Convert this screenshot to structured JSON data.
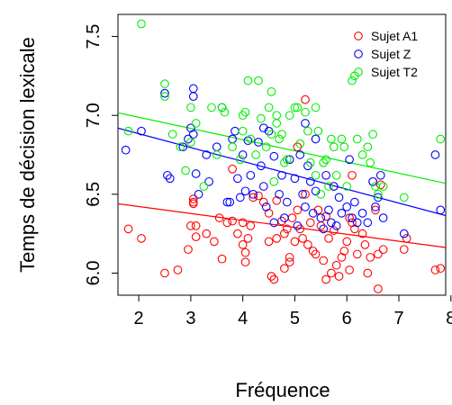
{
  "chart_data": {
    "type": "scatter",
    "xlabel": "Fréquence",
    "ylabel": "Temps de décision lexicale",
    "xlim": [
      1.6,
      7.9
    ],
    "ylim": [
      5.86,
      7.64
    ],
    "x_ticks": [
      2,
      3,
      4,
      5,
      6,
      7,
      8
    ],
    "y_ticks": [
      6.0,
      6.5,
      7.0,
      7.5
    ],
    "legend_position": "top-right",
    "series": [
      {
        "name": "Sujet A1",
        "color": "#ff0000",
        "fit": {
          "intercept": 6.51,
          "slope": -0.044
        },
        "points": [
          [
            1.8,
            6.28
          ],
          [
            2.05,
            6.22
          ],
          [
            2.5,
            6.0
          ],
          [
            2.75,
            6.02
          ],
          [
            2.95,
            6.15
          ],
          [
            3.0,
            6.3
          ],
          [
            3.05,
            6.44
          ],
          [
            3.05,
            6.45
          ],
          [
            3.05,
            6.47
          ],
          [
            3.1,
            6.3
          ],
          [
            3.1,
            6.23
          ],
          [
            3.3,
            6.25
          ],
          [
            3.45,
            6.2
          ],
          [
            3.55,
            6.35
          ],
          [
            3.6,
            6.09
          ],
          [
            3.7,
            6.32
          ],
          [
            3.8,
            6.33
          ],
          [
            3.9,
            6.25
          ],
          [
            4.0,
            6.18
          ],
          [
            4.0,
            6.32
          ],
          [
            4.05,
            6.13
          ],
          [
            4.05,
            6.07
          ],
          [
            4.1,
            6.22
          ],
          [
            4.15,
            6.3
          ],
          [
            4.2,
            6.48
          ],
          [
            4.3,
            6.49
          ],
          [
            4.4,
            6.45
          ],
          [
            4.5,
            6.38
          ],
          [
            4.5,
            6.2
          ],
          [
            4.55,
            5.98
          ],
          [
            4.6,
            5.96
          ],
          [
            4.65,
            6.46
          ],
          [
            4.65,
            6.22
          ],
          [
            4.75,
            6.33
          ],
          [
            4.8,
            6.25
          ],
          [
            4.8,
            6.03
          ],
          [
            4.85,
            6.28
          ],
          [
            4.9,
            6.1
          ],
          [
            4.9,
            6.07
          ],
          [
            4.95,
            6.35
          ],
          [
            5.0,
            6.2
          ],
          [
            5.05,
            6.4
          ],
          [
            5.1,
            6.28
          ],
          [
            5.15,
            6.22
          ],
          [
            5.2,
            6.5
          ],
          [
            5.25,
            6.18
          ],
          [
            5.3,
            6.32
          ],
          [
            5.35,
            6.14
          ],
          [
            5.4,
            6.12
          ],
          [
            5.45,
            6.4
          ],
          [
            5.5,
            6.3
          ],
          [
            5.55,
            6.08
          ],
          [
            5.6,
            5.96
          ],
          [
            5.6,
            6.36
          ],
          [
            5.65,
            6.22
          ],
          [
            5.7,
            6.0
          ],
          [
            5.75,
            6.27
          ],
          [
            5.8,
            6.05
          ],
          [
            5.85,
            5.98
          ],
          [
            5.9,
            6.1
          ],
          [
            5.95,
            6.14
          ],
          [
            6.0,
            6.2
          ],
          [
            6.05,
            6.35
          ],
          [
            6.05,
            6.02
          ],
          [
            6.1,
            6.32
          ],
          [
            6.15,
            6.28
          ],
          [
            6.2,
            6.12
          ],
          [
            6.3,
            6.25
          ],
          [
            6.35,
            6.18
          ],
          [
            6.4,
            6.0
          ],
          [
            6.45,
            6.1
          ],
          [
            6.55,
            6.4
          ],
          [
            6.6,
            6.12
          ],
          [
            6.6,
            5.9
          ],
          [
            6.65,
            6.56
          ],
          [
            6.7,
            6.15
          ],
          [
            7.1,
            6.15
          ],
          [
            7.15,
            6.22
          ],
          [
            7.7,
            6.02
          ],
          [
            7.8,
            6.03
          ],
          [
            5.2,
            7.1
          ],
          [
            5.05,
            6.8
          ],
          [
            6.5,
            6.58
          ],
          [
            6.1,
            6.62
          ],
          [
            5.75,
            6.55
          ],
          [
            3.8,
            6.66
          ]
        ]
      },
      {
        "name": "Sujet Z",
        "color": "#0000ff",
        "fit": {
          "intercept": 7.06,
          "slope": -0.088
        },
        "points": [
          [
            1.75,
            6.78
          ],
          [
            2.05,
            6.9
          ],
          [
            2.5,
            7.14
          ],
          [
            2.55,
            6.62
          ],
          [
            2.6,
            6.6
          ],
          [
            2.85,
            6.8
          ],
          [
            2.95,
            6.85
          ],
          [
            3.0,
            6.92
          ],
          [
            3.05,
            7.17
          ],
          [
            3.05,
            7.12
          ],
          [
            3.05,
            6.88
          ],
          [
            3.1,
            6.63
          ],
          [
            3.15,
            6.5
          ],
          [
            3.3,
            6.75
          ],
          [
            3.35,
            6.58
          ],
          [
            3.5,
            6.8
          ],
          [
            3.6,
            7.05
          ],
          [
            3.7,
            6.45
          ],
          [
            3.75,
            6.45
          ],
          [
            3.8,
            6.85
          ],
          [
            3.85,
            6.9
          ],
          [
            3.9,
            6.6
          ],
          [
            3.95,
            6.48
          ],
          [
            4.0,
            6.75
          ],
          [
            4.05,
            6.52
          ],
          [
            4.1,
            6.84
          ],
          [
            4.15,
            6.62
          ],
          [
            4.2,
            6.5
          ],
          [
            4.3,
            6.83
          ],
          [
            4.35,
            6.68
          ],
          [
            4.4,
            6.55
          ],
          [
            4.45,
            6.42
          ],
          [
            4.5,
            6.9
          ],
          [
            4.6,
            6.32
          ],
          [
            4.6,
            6.74
          ],
          [
            4.7,
            6.5
          ],
          [
            4.75,
            6.62
          ],
          [
            4.8,
            6.35
          ],
          [
            4.85,
            6.45
          ],
          [
            4.9,
            6.72
          ],
          [
            5.0,
            6.6
          ],
          [
            5.05,
            6.3
          ],
          [
            5.1,
            6.75
          ],
          [
            5.15,
            6.5
          ],
          [
            5.2,
            6.42
          ],
          [
            5.25,
            6.68
          ],
          [
            5.3,
            6.58
          ],
          [
            5.35,
            6.38
          ],
          [
            5.4,
            6.52
          ],
          [
            5.5,
            6.35
          ],
          [
            5.55,
            6.28
          ],
          [
            5.6,
            6.62
          ],
          [
            5.65,
            6.4
          ],
          [
            5.7,
            6.32
          ],
          [
            5.75,
            6.55
          ],
          [
            5.8,
            6.3
          ],
          [
            5.85,
            6.48
          ],
          [
            5.9,
            6.38
          ],
          [
            6.0,
            6.42
          ],
          [
            6.05,
            6.72
          ],
          [
            6.1,
            6.35
          ],
          [
            6.15,
            6.45
          ],
          [
            6.2,
            6.32
          ],
          [
            6.3,
            6.38
          ],
          [
            6.4,
            6.32
          ],
          [
            6.5,
            6.58
          ],
          [
            6.55,
            6.42
          ],
          [
            6.6,
            6.48
          ],
          [
            6.65,
            6.62
          ],
          [
            6.7,
            6.35
          ],
          [
            7.1,
            6.25
          ],
          [
            7.7,
            6.75
          ],
          [
            7.8,
            6.4
          ],
          [
            4.4,
            6.92
          ],
          [
            5.2,
            6.95
          ],
          [
            5.4,
            6.85
          ]
        ]
      },
      {
        "name": "Sujet T2",
        "color": "#00ee00",
        "fit": {
          "intercept": 7.13,
          "slope": -0.071
        },
        "points": [
          [
            1.8,
            6.9
          ],
          [
            2.05,
            7.58
          ],
          [
            2.5,
            7.2
          ],
          [
            2.5,
            7.12
          ],
          [
            2.65,
            6.88
          ],
          [
            2.8,
            6.8
          ],
          [
            2.9,
            6.65
          ],
          [
            3.0,
            7.05
          ],
          [
            3.0,
            6.83
          ],
          [
            3.1,
            6.95
          ],
          [
            3.25,
            6.55
          ],
          [
            3.4,
            7.05
          ],
          [
            3.5,
            6.75
          ],
          [
            3.6,
            7.05
          ],
          [
            3.65,
            7.02
          ],
          [
            3.8,
            6.8
          ],
          [
            3.95,
            6.72
          ],
          [
            4.0,
            6.9
          ],
          [
            4.0,
            7.0
          ],
          [
            4.05,
            7.02
          ],
          [
            4.1,
            7.22
          ],
          [
            4.15,
            6.85
          ],
          [
            4.25,
            6.75
          ],
          [
            4.3,
            7.22
          ],
          [
            4.35,
            6.98
          ],
          [
            4.45,
            6.8
          ],
          [
            4.5,
            7.05
          ],
          [
            4.55,
            7.15
          ],
          [
            4.55,
            6.88
          ],
          [
            4.6,
            6.58
          ],
          [
            4.65,
            7.0
          ],
          [
            4.65,
            6.95
          ],
          [
            4.7,
            6.85
          ],
          [
            4.75,
            6.88
          ],
          [
            4.8,
            6.7
          ],
          [
            4.85,
            6.72
          ],
          [
            4.9,
            7.0
          ],
          [
            5.0,
            7.05
          ],
          [
            5.05,
            7.05
          ],
          [
            5.1,
            6.82
          ],
          [
            5.2,
            7.02
          ],
          [
            5.25,
            6.9
          ],
          [
            5.3,
            6.7
          ],
          [
            5.4,
            7.05
          ],
          [
            5.45,
            6.9
          ],
          [
            5.5,
            6.5
          ],
          [
            5.55,
            6.7
          ],
          [
            5.6,
            6.72
          ],
          [
            5.65,
            6.55
          ],
          [
            5.7,
            6.85
          ],
          [
            5.75,
            6.8
          ],
          [
            5.8,
            6.62
          ],
          [
            5.9,
            6.85
          ],
          [
            5.95,
            6.8
          ],
          [
            6.0,
            6.55
          ],
          [
            6.1,
            7.22
          ],
          [
            6.15,
            7.25
          ],
          [
            6.2,
            6.85
          ],
          [
            6.3,
            6.75
          ],
          [
            6.45,
            6.7
          ],
          [
            6.5,
            6.88
          ],
          [
            6.55,
            6.55
          ],
          [
            6.6,
            6.5
          ],
          [
            6.7,
            6.55
          ],
          [
            7.1,
            6.48
          ],
          [
            7.8,
            6.85
          ],
          [
            6.4,
            6.8
          ],
          [
            5.4,
            6.62
          ]
        ]
      }
    ]
  }
}
